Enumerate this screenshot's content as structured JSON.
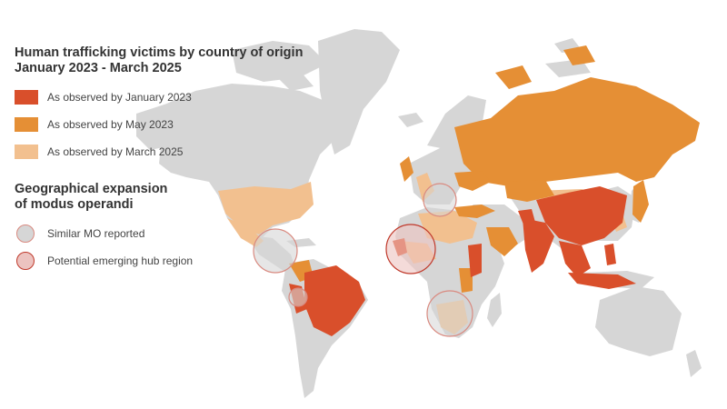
{
  "legend": {
    "title_line1": "Human trafficking victims by country of origin",
    "title_line2": "January 2023 - March 2025",
    "categories": [
      {
        "label": "As observed by January 2023",
        "color": "#d94f2b"
      },
      {
        "label": "As observed by May 2023",
        "color": "#e58f35"
      },
      {
        "label": "As observed by March 2025",
        "color": "#f2c08f"
      }
    ],
    "section2_line1": "Geographical expansion",
    "section2_line2": "of modus operandi",
    "markers": [
      {
        "label": "Similar MO reported",
        "fill": "#d6d6d6",
        "stroke": "#d98a80"
      },
      {
        "label": "Potential emerging hub region",
        "fill": "#ecc3c0",
        "stroke": "#c0392b"
      }
    ]
  },
  "colors": {
    "land_default": "#d6d6d6",
    "background": "#ffffff"
  }
}
